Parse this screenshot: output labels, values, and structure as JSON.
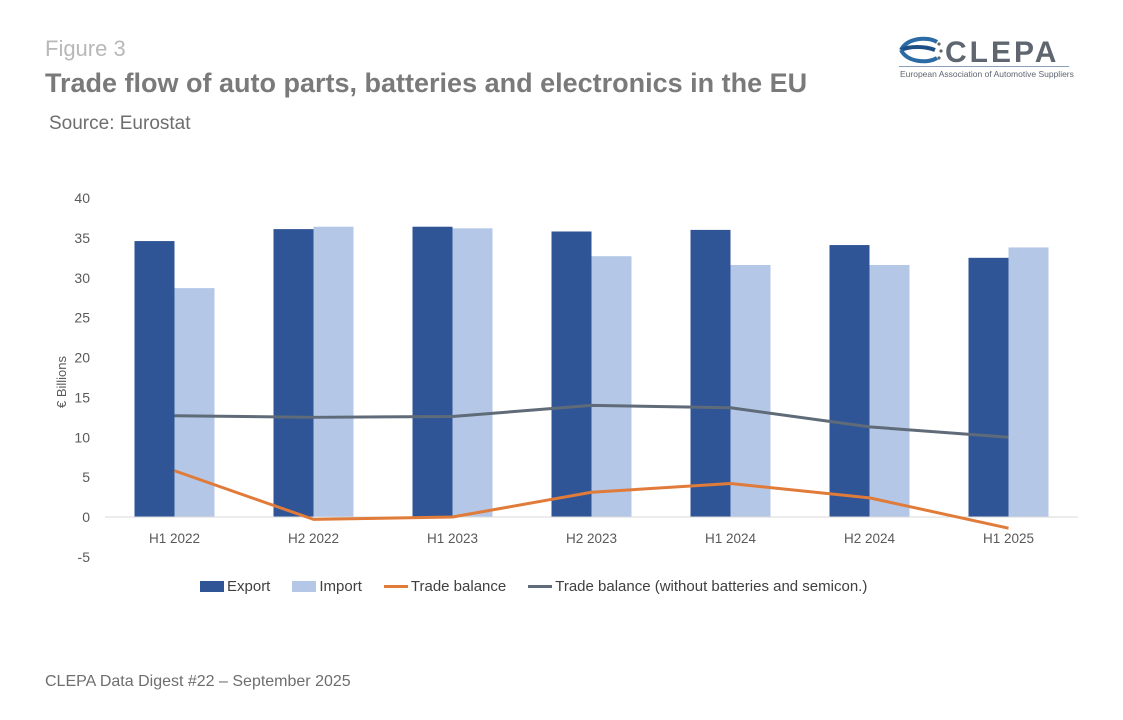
{
  "header": {
    "figure_label": "Figure 3",
    "title": "Trade flow of auto parts, batteries and electronics in the EU",
    "source": "Source: Eurostat"
  },
  "logo": {
    "name": "CLEPA",
    "subtitle": "European Association of Automotive Suppliers"
  },
  "footer": "CLEPA Data Digest #22 – September 2025",
  "colors": {
    "export": "#2f5597",
    "import": "#b4c7e7",
    "trade_balance": "#e07b39",
    "trade_balance_ex": "#5f6b78",
    "axis": "#d9d9d9",
    "tick_text": "#595959"
  },
  "chart_data": {
    "type": "bar",
    "title": "Trade flow of auto parts, batteries and electronics in the EU",
    "xlabel": "",
    "ylabel": "€ Billions",
    "ylim": [
      -5,
      40
    ],
    "yticks": [
      40,
      35,
      30,
      25,
      20,
      15,
      10,
      5,
      0,
      -5
    ],
    "grid": false,
    "legend_position": "bottom",
    "categories": [
      "H1 2022",
      "H2 2022",
      "H1 2023",
      "H2 2023",
      "H1 2024",
      "H2 2024",
      "H1 2025"
    ],
    "series": [
      {
        "name": "Export",
        "kind": "bar",
        "values": [
          34.6,
          36.1,
          36.4,
          35.8,
          36.0,
          34.1,
          32.5
        ]
      },
      {
        "name": "Import",
        "kind": "bar",
        "values": [
          28.7,
          36.4,
          36.2,
          32.7,
          31.6,
          31.6,
          33.8
        ]
      },
      {
        "name": "Trade balance",
        "kind": "line",
        "values": [
          5.8,
          -0.3,
          0.0,
          3.1,
          4.2,
          2.4,
          -1.4
        ]
      },
      {
        "name": "Trade balance (without batteries and semicon.)",
        "kind": "line",
        "values": [
          12.7,
          12.5,
          12.6,
          14.0,
          13.7,
          11.3,
          10.0
        ]
      }
    ]
  }
}
